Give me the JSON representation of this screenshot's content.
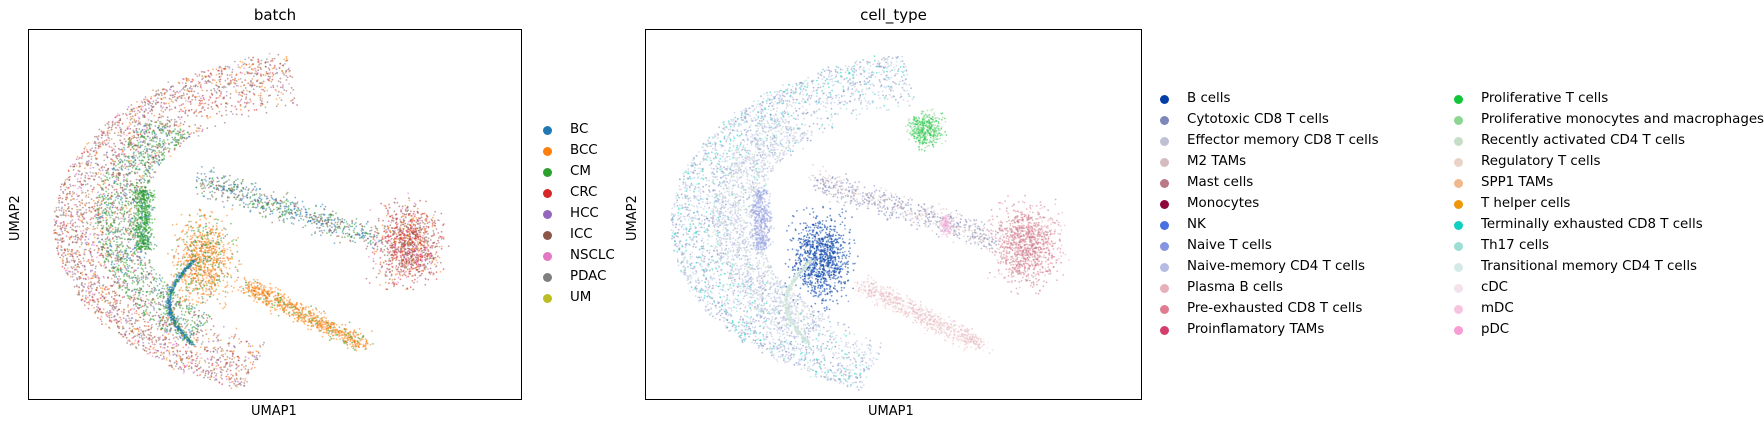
{
  "chart_data": [
    {
      "type": "scatter",
      "title": "batch",
      "xlabel": "UMAP1",
      "ylabel": "UMAP2",
      "grid": false,
      "legend_placement": "right",
      "series": [
        {
          "name": "BC",
          "color": "#1f77b4"
        },
        {
          "name": "BCC",
          "color": "#ff7f0e"
        },
        {
          "name": "CM",
          "color": "#2ca02c"
        },
        {
          "name": "CRC",
          "color": "#d62728"
        },
        {
          "name": "HCC",
          "color": "#9467bd"
        },
        {
          "name": "ICC",
          "color": "#8c564b"
        },
        {
          "name": "NSCLC",
          "color": "#e377c2"
        },
        {
          "name": "PDAC",
          "color": "#7f7f7f"
        },
        {
          "name": "UM",
          "color": "#bcbd22"
        }
      ]
    },
    {
      "type": "scatter",
      "title": "cell_type",
      "xlabel": "UMAP1",
      "ylabel": "UMAP2",
      "grid": false,
      "legend_placement": "right",
      "series": [
        {
          "name": "B cells",
          "color": "#023fa5"
        },
        {
          "name": "Cytotoxic CD8 T cells",
          "color": "#7d87b9"
        },
        {
          "name": "Effector memory CD8 T cells",
          "color": "#bec1d4"
        },
        {
          "name": "M2 TAMs",
          "color": "#d6bcc0"
        },
        {
          "name": "Mast cells",
          "color": "#bb7784"
        },
        {
          "name": "Monocytes",
          "color": "#8e063b"
        },
        {
          "name": "NK",
          "color": "#4a6fe3"
        },
        {
          "name": "Naive T cells",
          "color": "#8595e1"
        },
        {
          "name": "Naive-memory CD4 T cells",
          "color": "#b5bbe3"
        },
        {
          "name": "Plasma B cells",
          "color": "#e6afb9"
        },
        {
          "name": "Pre-exhausted CD8 T cells",
          "color": "#e07b91"
        },
        {
          "name": "Proinflamatory TAMs",
          "color": "#d33f6a"
        },
        {
          "name": "Proliferative T cells",
          "color": "#11c638"
        },
        {
          "name": "Proliferative monocytes and macrophages",
          "color": "#8dd593"
        },
        {
          "name": "Recently activated CD4 T cells",
          "color": "#c6dec7"
        },
        {
          "name": "Regulatory T cells",
          "color": "#ead3c6"
        },
        {
          "name": "SPP1 TAMs",
          "color": "#f0b98d"
        },
        {
          "name": "T helper cells",
          "color": "#ef9708"
        },
        {
          "name": "Terminally exhausted CD8 T cells",
          "color": "#0fcfc0"
        },
        {
          "name": "Th17 cells",
          "color": "#9cded6"
        },
        {
          "name": "Transitional memory CD4 T cells",
          "color": "#d5eae7"
        },
        {
          "name": "cDC",
          "color": "#f3e1eb"
        },
        {
          "name": "mDC",
          "color": "#f6c4e1"
        },
        {
          "name": "pDC",
          "color": "#f79cd4"
        }
      ]
    }
  ]
}
